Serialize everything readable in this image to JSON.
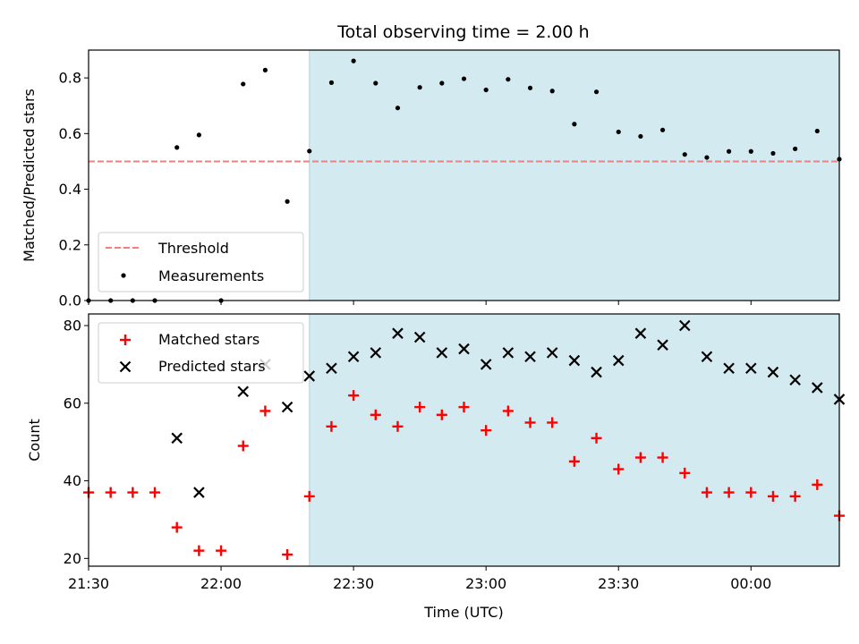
{
  "chart_data": {
    "type": "scatter",
    "title": "Total observing time = 2.00 h",
    "xlabel": "Time (UTC)",
    "x_tick_labels": [
      "21:30",
      "22:00",
      "22:30",
      "23:00",
      "23:30",
      "00:00"
    ],
    "x_tick_minutes": [
      1290,
      1320,
      1350,
      1380,
      1410,
      1440
    ],
    "x_range": [
      "21:30",
      "00:20"
    ],
    "x_range_minutes": [
      1290,
      1460
    ],
    "shaded_interval": [
      "22:20",
      "00:20"
    ],
    "shaded_interval_minutes": [
      1340,
      1460
    ],
    "shade_color": "#d4eaf1",
    "times": [
      "21:30",
      "21:35",
      "21:40",
      "21:45",
      "21:50",
      "21:55",
      "22:00",
      "22:05",
      "22:10",
      "22:15",
      "22:20",
      "22:25",
      "22:30",
      "22:35",
      "22:40",
      "22:45",
      "22:50",
      "22:55",
      "23:00",
      "23:05",
      "23:10",
      "23:15",
      "23:20",
      "23:25",
      "23:30",
      "23:35",
      "23:40",
      "23:45",
      "23:50",
      "23:55",
      "00:00",
      "00:05",
      "00:10",
      "00:15",
      "00:20"
    ],
    "time_minutes": [
      1290,
      1295,
      1300,
      1305,
      1310,
      1315,
      1320,
      1325,
      1330,
      1335,
      1340,
      1345,
      1350,
      1355,
      1360,
      1365,
      1370,
      1375,
      1380,
      1385,
      1390,
      1395,
      1400,
      1405,
      1410,
      1415,
      1420,
      1425,
      1430,
      1435,
      1440,
      1445,
      1450,
      1455,
      1460
    ],
    "panels": [
      {
        "ylabel": "Matched/Predicted stars",
        "ylim": [
          0,
          0.9
        ],
        "y_ticks": [
          0.0,
          0.2,
          0.4,
          0.6,
          0.8
        ],
        "y_tick_labels": [
          "0.0",
          "0.2",
          "0.4",
          "0.6",
          "0.8"
        ],
        "legend_position": "lower-left",
        "threshold": {
          "name": "Threshold",
          "value": 0.5,
          "color": "#f08080"
        },
        "series": [
          {
            "name": "Measurements",
            "marker": "dot",
            "color": "#000000",
            "values": [
              0.0,
              0.0,
              0.0,
              0.0,
              0.55,
              0.595,
              0.0,
              0.778,
              0.828,
              0.356,
              0.537,
              0.783,
              0.861,
              0.781,
              0.692,
              0.766,
              0.781,
              0.797,
              0.757,
              0.795,
              0.764,
              0.753,
              0.634,
              0.75,
              0.606,
              0.59,
              0.613,
              0.525,
              0.514,
              0.536,
              0.536,
              0.529,
              0.545,
              0.609,
              0.508
            ]
          }
        ]
      },
      {
        "ylabel": "Count",
        "ylim": [
          18,
          83
        ],
        "y_ticks": [
          20,
          40,
          60,
          80
        ],
        "y_tick_labels": [
          "20",
          "40",
          "60",
          "80"
        ],
        "legend_position": "upper-left",
        "series": [
          {
            "name": "Matched stars",
            "marker": "plus",
            "color": "#ff0000",
            "values": [
              37,
              37,
              37,
              37,
              28,
              22,
              22,
              49,
              58,
              21,
              36,
              54,
              62,
              57,
              54,
              59,
              57,
              59,
              53,
              58,
              55,
              55,
              45,
              51,
              43,
              46,
              46,
              42,
              37,
              37,
              37,
              36,
              36,
              39,
              31
            ]
          },
          {
            "name": "Predicted stars",
            "marker": "x",
            "color": "#000000",
            "values": [
              null,
              null,
              null,
              null,
              51,
              37,
              null,
              63,
              70,
              59,
              67,
              69,
              72,
              73,
              78,
              77,
              73,
              74,
              70,
              73,
              72,
              73,
              71,
              68,
              71,
              78,
              75,
              80,
              72,
              69,
              69,
              68,
              66,
              64,
              61
            ]
          }
        ]
      }
    ]
  }
}
